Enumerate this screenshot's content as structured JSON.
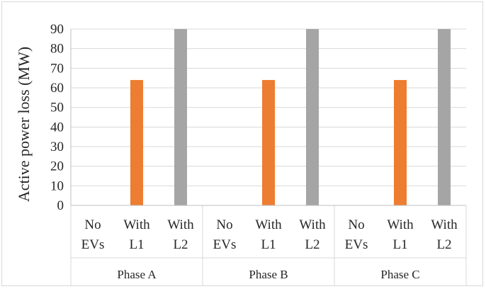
{
  "chart_data": {
    "type": "bar",
    "ylabel": "Active power loss (MW)",
    "xlabel": "",
    "ylim": [
      0,
      90
    ],
    "yticks": [
      0,
      10,
      20,
      30,
      40,
      50,
      60,
      70,
      80,
      90
    ],
    "grid": true,
    "groups": [
      {
        "label": "Phase A",
        "categories": [
          {
            "line1": "No",
            "line2": "EVs",
            "value": 0,
            "color": "#4472c4"
          },
          {
            "line1": "With",
            "line2": "L1",
            "value": 64,
            "color": "#ed7d31"
          },
          {
            "line1": "With",
            "line2": "L2",
            "value": 90,
            "color": "#a5a5a5"
          }
        ]
      },
      {
        "label": "Phase B",
        "categories": [
          {
            "line1": "No",
            "line2": "EVs",
            "value": 0,
            "color": "#4472c4"
          },
          {
            "line1": "With",
            "line2": "L1",
            "value": 64,
            "color": "#ed7d31"
          },
          {
            "line1": "With",
            "line2": "L2",
            "value": 90,
            "color": "#a5a5a5"
          }
        ]
      },
      {
        "label": "Phase C",
        "categories": [
          {
            "line1": "No",
            "line2": "EVs",
            "value": 0,
            "color": "#4472c4"
          },
          {
            "line1": "With",
            "line2": "L1",
            "value": 64,
            "color": "#ed7d31"
          },
          {
            "line1": "With",
            "line2": "L2",
            "value": 90,
            "color": "#a5a5a5"
          }
        ]
      }
    ]
  }
}
